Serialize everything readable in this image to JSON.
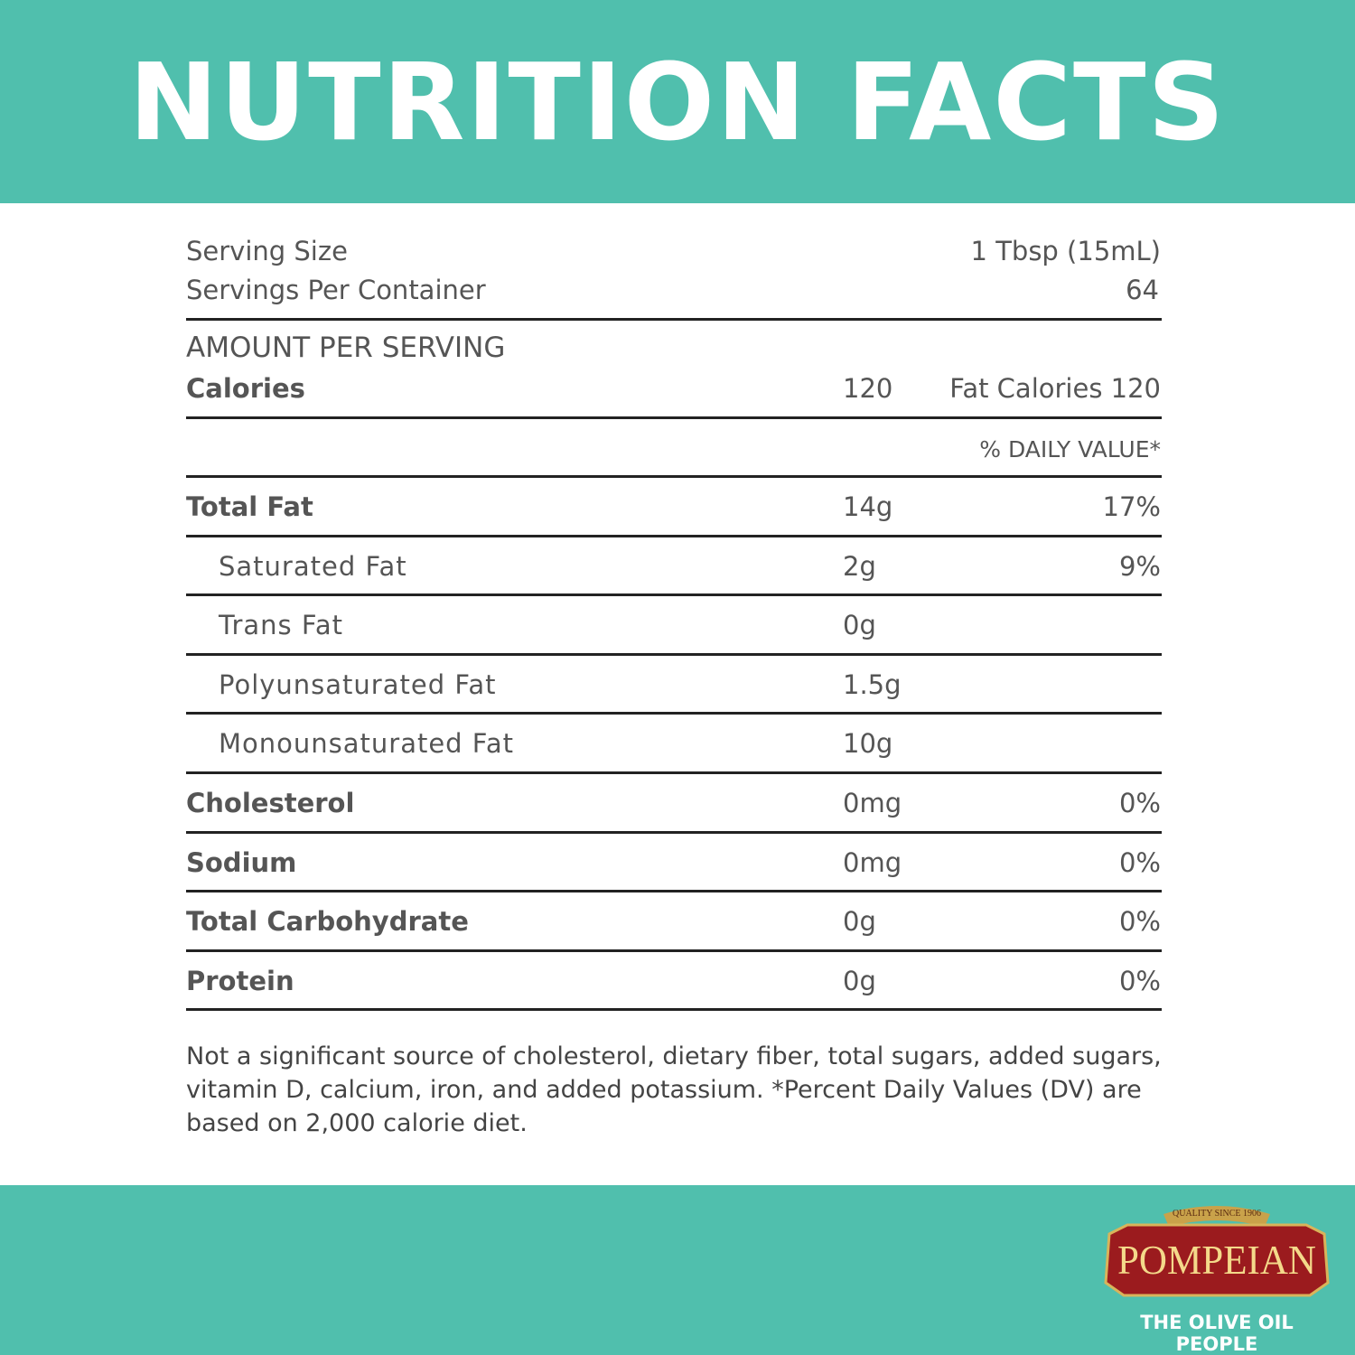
{
  "header": {
    "title": "NUTRITION FACTS"
  },
  "serving": {
    "size_label": "Serving Size",
    "size": "1 Tbsp (15mL)",
    "per_container_label": "Servings Per Container",
    "per_container": "64"
  },
  "calories": {
    "section_label": "AMOUNT PER SERVING",
    "label": "Calories",
    "value": "120",
    "fat_calories": "Fat Calories 120"
  },
  "daily_value_header": "% DAILY VALUE*",
  "nutrients": [
    {
      "name": "Total Fat",
      "amount": "14g",
      "dv": "17%",
      "bold": true,
      "indent": false
    },
    {
      "name": "Saturated Fat",
      "amount": "2g",
      "dv": "9%",
      "bold": false,
      "indent": true
    },
    {
      "name": "Trans Fat",
      "amount": "0g",
      "bold": false,
      "indent": true
    },
    {
      "name": "Polyunsaturated Fat",
      "amount": "1.5g",
      "bold": false,
      "indent": true
    },
    {
      "name": "Monounsaturated Fat",
      "amount": "10g",
      "bold": false,
      "indent": true
    },
    {
      "name": "Cholesterol",
      "amount": "0mg",
      "dv": "0%",
      "bold": true,
      "indent": false
    },
    {
      "name": "Sodium",
      "amount": "0mg",
      "dv": "0%",
      "bold": true,
      "indent": false
    },
    {
      "name": "Total Carbohydrate",
      "amount": "0g",
      "dv": "0%",
      "bold": true,
      "indent": false
    },
    {
      "name": "Protein",
      "amount": "0g",
      "dv": "0%",
      "bold": true,
      "indent": false
    }
  ],
  "footnote": "Not a significant source of cholesterol, dietary fiber, total sugars, added sugars, vitamin D, calcium, iron, and added potassium. *Percent Daily Values (DV) are based on 2,000 calorie diet.",
  "logo": {
    "tagline_top": "QUALITY SINCE 1906",
    "brand": "POMPEIAN",
    "slogan": "THE OLIVE OIL PEOPLE"
  }
}
